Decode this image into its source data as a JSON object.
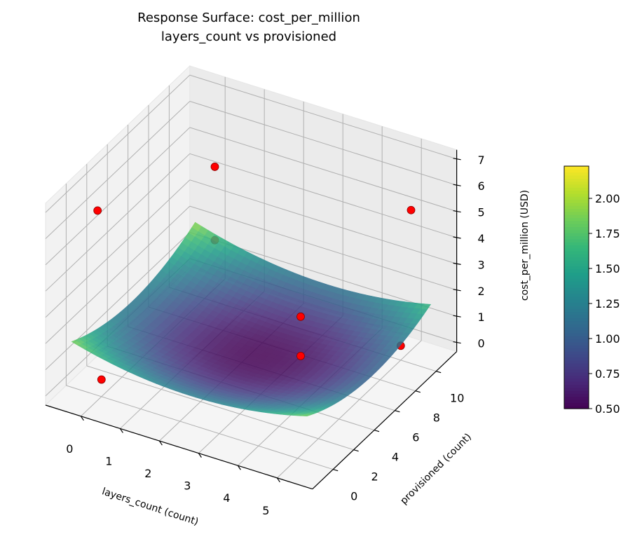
{
  "chart_data": {
    "type": "surface",
    "title": "Response Surface: cost_per_million",
    "subtitle": "layers_count vs provisioned",
    "xlabel": "layers_count (count)",
    "ylabel": "provisioned (count)",
    "zlabel": "cost_per_million (USD)",
    "xlim": [
      -0.9,
      5.9
    ],
    "ylim": [
      -2,
      12
    ],
    "zlim": [
      -0.35,
      7.35
    ],
    "x_ticks": [
      "0",
      "1",
      "2",
      "3",
      "4",
      "5"
    ],
    "y_ticks": [
      "0",
      "2",
      "4",
      "6",
      "8",
      "10"
    ],
    "z_ticks": [
      "0",
      "1",
      "2",
      "3",
      "4",
      "5",
      "6",
      "7"
    ],
    "grid": true,
    "surface": {
      "model": "quadratic",
      "x_range": [
        -0.5,
        5.5
      ],
      "y_range": [
        -1,
        11
      ],
      "min_value": 0.5,
      "center": [
        2.7,
        5.2
      ],
      "coef_x2": 0.07,
      "coef_y2": 0.0195,
      "coef_xy": -0.004,
      "colormap": "viridis",
      "alpha": 0.85
    },
    "scatter": {
      "color": "#ff0000",
      "edge_color": "#8b0000",
      "points": [
        {
          "x": 0,
          "y": 0,
          "z": 0.3
        },
        {
          "x": -0.1,
          "y": 0,
          "z": 6.7
        },
        {
          "x": 0,
          "y": 11,
          "z": 4.3
        },
        {
          "x": 0,
          "y": 11,
          "z": 1.5
        },
        {
          "x": 3.5,
          "y": 6,
          "z": 2.1
        },
        {
          "x": 3.5,
          "y": 6,
          "z": 0.6
        },
        {
          "x": 5,
          "y": 11,
          "z": 5.0
        },
        {
          "x": 5,
          "y": 10,
          "z": 0.2
        }
      ]
    },
    "colorbar": {
      "range": [
        0.5,
        2.23
      ],
      "ticks": [
        "0.50",
        "0.75",
        "1.00",
        "1.25",
        "1.50",
        "1.75",
        "2.00"
      ],
      "colormap": "viridis"
    }
  }
}
